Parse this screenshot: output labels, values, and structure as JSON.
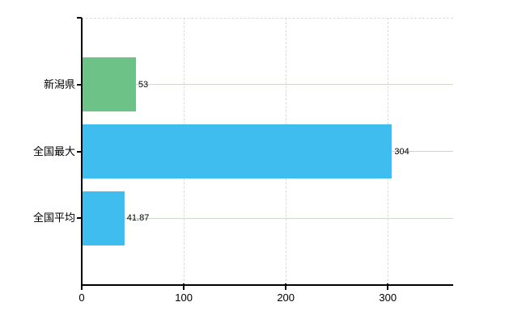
{
  "chart_data": {
    "type": "bar",
    "orientation": "horizontal",
    "title": "",
    "xlabel": "",
    "ylabel": "",
    "categories": [
      "新潟県",
      "全国最大",
      "全国平均"
    ],
    "values": [
      53,
      304,
      41.87
    ],
    "value_labels": [
      "53",
      "304",
      "41.87"
    ],
    "bar_colors": [
      "#6cc287",
      "#3ebdee",
      "#3ebdee"
    ],
    "xlim": [
      0,
      364
    ],
    "xticks": [
      0,
      100,
      200,
      300
    ],
    "xtick_labels": [
      "0",
      "100",
      "200",
      "300"
    ],
    "legend": "none",
    "grid": {
      "vertical_value_lines": "dashed",
      "top_boundary_line": "dashed",
      "category_lines": "solid"
    },
    "styles": {
      "axis_color": "#000000",
      "text_color": "#000000",
      "grid_dashed_color": "#d9d9de",
      "grid_solid_color": "#cfd6cd",
      "background": "#ffffff"
    }
  }
}
